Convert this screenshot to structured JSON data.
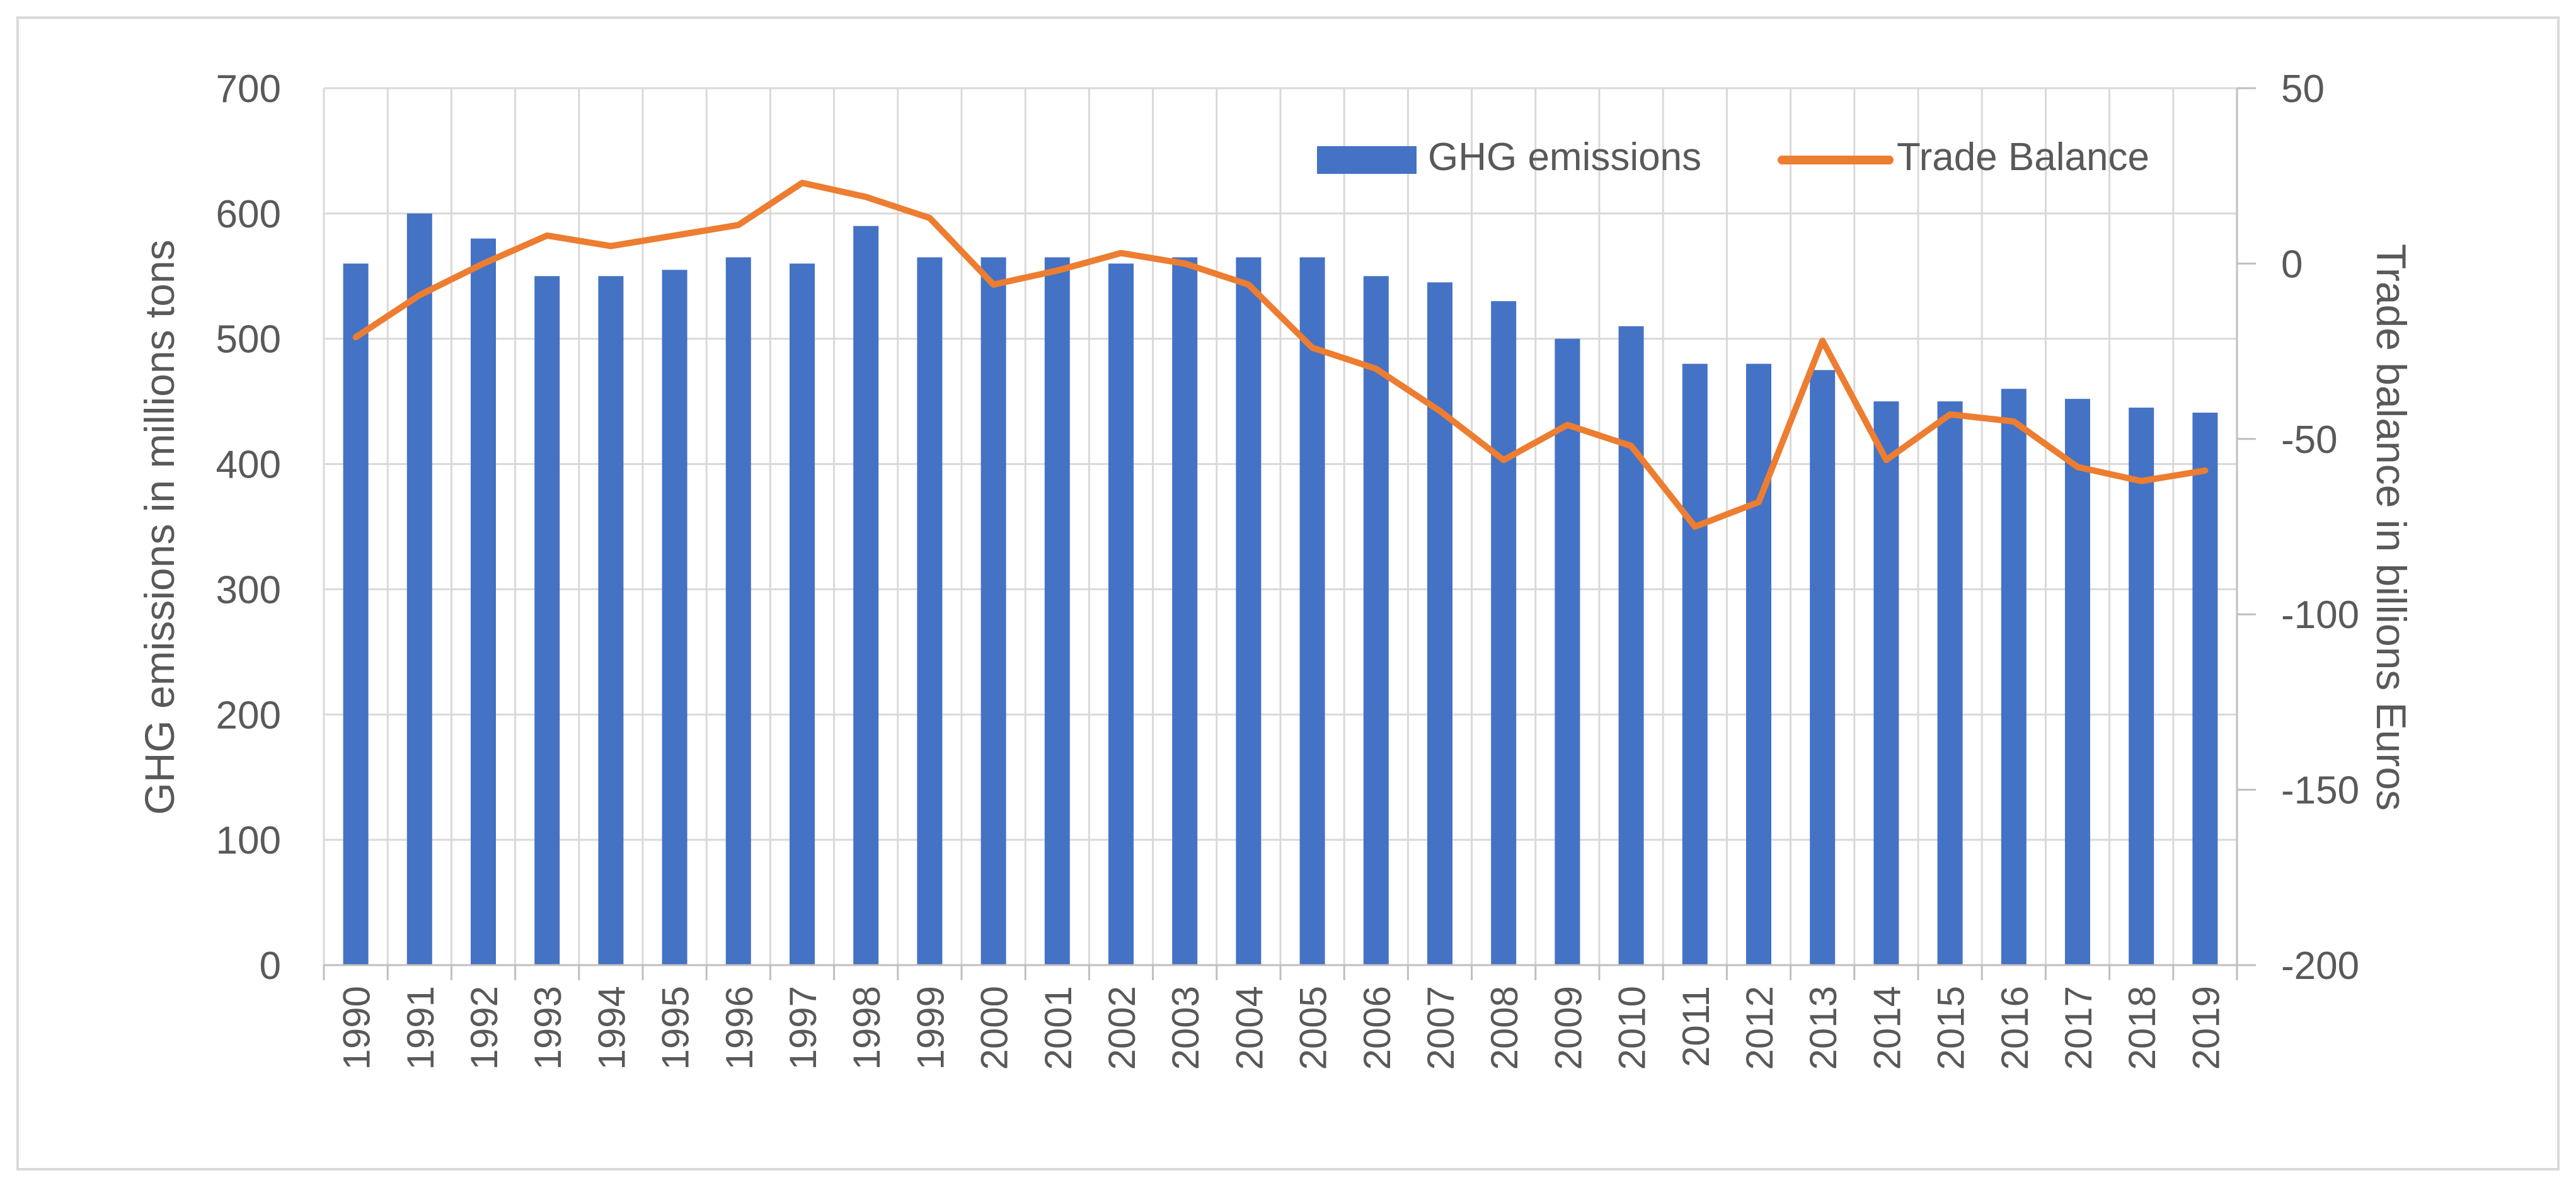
{
  "chart_data": {
    "type": "bar",
    "title": "",
    "categories": [
      "1990",
      "1991",
      "1992",
      "1993",
      "1994",
      "1995",
      "1996",
      "1997",
      "1998",
      "1999",
      "2000",
      "2001",
      "2002",
      "2003",
      "2004",
      "2005",
      "2006",
      "2007",
      "2008",
      "2009",
      "2010",
      "2011",
      "2012",
      "2013",
      "2014",
      "2015",
      "2016",
      "2017",
      "2018",
      "2019"
    ],
    "series": [
      {
        "name": "GHG emissions",
        "type": "bar",
        "axis": "left",
        "color": "#4472C4",
        "values": [
          560,
          600,
          580,
          550,
          550,
          555,
          565,
          560,
          590,
          565,
          565,
          565,
          560,
          565,
          565,
          565,
          550,
          545,
          530,
          500,
          510,
          480,
          480,
          475,
          450,
          450,
          460,
          452,
          445,
          441
        ]
      },
      {
        "name": "Trade Balance",
        "type": "line",
        "axis": "right",
        "color": "#ED7D31",
        "values": [
          -21,
          -9,
          0,
          8,
          5,
          8,
          11,
          23,
          19,
          13,
          -6,
          -2,
          3,
          0,
          -6,
          -24,
          -30,
          -42,
          -56,
          -46,
          -52,
          -75,
          -68,
          -22,
          -56,
          -43,
          -45,
          -58,
          -62,
          -59
        ]
      }
    ],
    "ylabel": "GHG emissions in millions tons",
    "ylim": [
      0,
      700
    ],
    "yticks": [
      "0",
      "100",
      "200",
      "300",
      "400",
      "500",
      "600",
      "700"
    ],
    "y2label": "Trade balance in billions Euros",
    "y2lim": [
      -200,
      50
    ],
    "y2ticks": [
      "-200",
      "-150",
      "-100",
      "-50",
      "0",
      "50"
    ],
    "grid": true,
    "legend": "top-right"
  }
}
